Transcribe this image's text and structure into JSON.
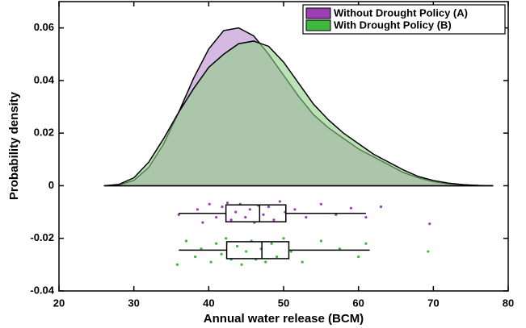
{
  "chart_data": {
    "type": "density",
    "xlabel": "Annual water release (BCM)",
    "ylabel": "Probability density",
    "xlim": [
      20,
      80
    ],
    "ylim": [
      -0.04,
      0.07
    ],
    "xticks": [
      20,
      30,
      40,
      50,
      60,
      70,
      80
    ],
    "yticks": [
      -0.04,
      -0.02,
      0,
      0.02,
      0.04,
      0.06
    ],
    "legend": "upper right",
    "x": [
      26,
      28,
      30,
      32,
      34,
      36,
      38,
      40,
      42,
      44,
      46,
      48,
      50,
      52,
      54,
      56,
      58,
      60,
      62,
      64,
      66,
      68,
      70,
      72,
      74,
      76,
      78
    ],
    "series": [
      {
        "name": "Without Drought Policy (A)",
        "color": "#9b3fb5",
        "fill": "#c8a2d8",
        "values": [
          0,
          0.0003,
          0.002,
          0.007,
          0.016,
          0.028,
          0.041,
          0.052,
          0.059,
          0.06,
          0.057,
          0.05,
          0.042,
          0.034,
          0.027,
          0.022,
          0.018,
          0.014,
          0.011,
          0.008,
          0.005,
          0.003,
          0.0015,
          0.0007,
          0.0003,
          0.0001,
          0
        ],
        "box": {
          "position": -0.0105,
          "whislo": 36,
          "q1": 42.3,
          "med": 46.8,
          "q3": 50.3,
          "whishi": 61
        },
        "points": {
          "x": [
            36,
            38.5,
            39.2,
            40.1,
            41,
            41.8,
            42.5,
            43,
            43.6,
            44.2,
            44.9,
            45.5,
            46.1,
            46.6,
            47.3,
            48,
            48.7,
            49.5,
            50.2,
            51.5,
            53,
            55,
            57,
            59,
            61,
            63,
            69.5
          ],
          "y": [
            -0.011,
            -0.009,
            -0.014,
            -0.007,
            -0.012,
            -0.008,
            -0.0065,
            -0.013,
            -0.01,
            -0.007,
            -0.012,
            -0.009,
            -0.014,
            -0.0075,
            -0.011,
            -0.008,
            -0.013,
            -0.006,
            -0.01,
            -0.009,
            -0.012,
            -0.007,
            -0.011,
            -0.0085,
            -0.012,
            -0.008,
            -0.0145
          ]
        }
      },
      {
        "name": "With Drought Policy (B)",
        "color": "#3db83d",
        "fill": "#8fcf88",
        "values": [
          0,
          0.0005,
          0.003,
          0.009,
          0.018,
          0.028,
          0.037,
          0.045,
          0.05,
          0.054,
          0.055,
          0.053,
          0.047,
          0.039,
          0.031,
          0.025,
          0.02,
          0.016,
          0.012,
          0.009,
          0.006,
          0.0035,
          0.002,
          0.001,
          0.0004,
          0.0001,
          0
        ],
        "box": {
          "position": -0.0245,
          "whislo": 36,
          "q1": 42.4,
          "med": 47.1,
          "q3": 50.7,
          "whishi": 61.5
        },
        "points": {
          "x": [
            35.8,
            37,
            38.2,
            39,
            40.3,
            41,
            41.7,
            42.3,
            43,
            43.8,
            44.4,
            45,
            45.7,
            46.3,
            47,
            47.6,
            48.4,
            49.1,
            50,
            51,
            52.5,
            55,
            57.5,
            60,
            61,
            69.3
          ],
          "y": [
            -0.03,
            -0.021,
            -0.027,
            -0.024,
            -0.029,
            -0.022,
            -0.026,
            -0.02,
            -0.028,
            -0.023,
            -0.03,
            -0.025,
            -0.021,
            -0.028,
            -0.024,
            -0.029,
            -0.022,
            -0.027,
            -0.02,
            -0.025,
            -0.029,
            -0.021,
            -0.024,
            -0.027,
            -0.022,
            -0.025
          ]
        }
      }
    ]
  }
}
